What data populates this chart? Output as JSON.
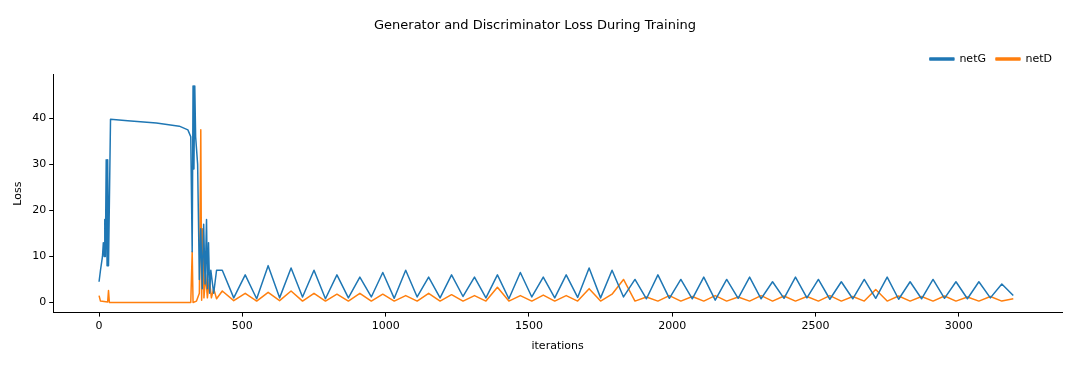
{
  "chart_data": {
    "type": "line",
    "title": "Generator and Discriminator Loss During Training",
    "xlabel": "iterations",
    "ylabel": "Loss",
    "xlim": [
      -160,
      3360
    ],
    "ylim": [
      -2.2,
      49.5
    ],
    "xticks": [
      0,
      500,
      1000,
      1500,
      2000,
      2500,
      3000
    ],
    "yticks": [
      0,
      10,
      20,
      30,
      40
    ],
    "grid": false,
    "legend": "top right",
    "marker": "none",
    "line_style": "solid",
    "series": [
      {
        "name": "netG",
        "color": "#1f77b4",
        "x": [
          0,
          5,
          12,
          15,
          18,
          20,
          22,
          25,
          28,
          30,
          33,
          40,
          100,
          200,
          280,
          310,
          320,
          325,
          328,
          331,
          334,
          337,
          344,
          350,
          355,
          360,
          365,
          370,
          375,
          378,
          382,
          386,
          390,
          400,
          410,
          430,
          470,
          510,
          550,
          590,
          630,
          670,
          710,
          750,
          790,
          830,
          870,
          910,
          950,
          990,
          1030,
          1070,
          1110,
          1150,
          1190,
          1230,
          1270,
          1310,
          1350,
          1390,
          1430,
          1470,
          1510,
          1550,
          1590,
          1630,
          1670,
          1710,
          1750,
          1790,
          1830,
          1870,
          1910,
          1950,
          1990,
          2030,
          2070,
          2110,
          2150,
          2190,
          2230,
          2270,
          2310,
          2350,
          2390,
          2430,
          2470,
          2510,
          2550,
          2590,
          2630,
          2670,
          2710,
          2750,
          2790,
          2830,
          2870,
          2910,
          2950,
          2990,
          3030,
          3070,
          3110,
          3150,
          3190
        ],
        "values": [
          4.5,
          7,
          10,
          13,
          10,
          18,
          10,
          31,
          8,
          31,
          8,
          39.8,
          39.5,
          39,
          38.3,
          37.5,
          36,
          11,
          47,
          29,
          47,
          36,
          30,
          5,
          16,
          3,
          17,
          4,
          18,
          3,
          13,
          2,
          7,
          2,
          7,
          7,
          1,
          6,
          0.8,
          8,
          1,
          7.5,
          1.2,
          7,
          0.8,
          6,
          1,
          5.5,
          1.2,
          6.5,
          0.9,
          7,
          1.2,
          5.5,
          1,
          6,
          1.3,
          5.5,
          1,
          6,
          0.8,
          6.5,
          1.2,
          5.5,
          1,
          6,
          1.1,
          7.5,
          1,
          7,
          1.2,
          5,
          0.8,
          6,
          0.9,
          5,
          0.8,
          5.5,
          0.5,
          5,
          0.9,
          5.5,
          0.8,
          4.5,
          0.9,
          5.5,
          1,
          5,
          0.7,
          4.5,
          0.8,
          5,
          0.9,
          5.5,
          0.7,
          4.5,
          0.8,
          5,
          0.9,
          4.5,
          0.8,
          4.5,
          1,
          4,
          1.5
        ]
      },
      {
        "name": "netD",
        "color": "#ff7f0e",
        "x": [
          0,
          5,
          30,
          33,
          36,
          320,
          325,
          328,
          340,
          350,
          355,
          358,
          362,
          366,
          372,
          378,
          385,
          392,
          400,
          410,
          430,
          470,
          510,
          550,
          590,
          630,
          670,
          710,
          750,
          790,
          830,
          870,
          910,
          950,
          990,
          1030,
          1070,
          1110,
          1150,
          1190,
          1230,
          1270,
          1310,
          1350,
          1390,
          1430,
          1470,
          1510,
          1550,
          1590,
          1630,
          1670,
          1710,
          1750,
          1790,
          1830,
          1870,
          1910,
          1950,
          1990,
          2030,
          2070,
          2110,
          2150,
          2190,
          2230,
          2270,
          2310,
          2350,
          2390,
          2430,
          2470,
          2510,
          2550,
          2590,
          2630,
          2670,
          2710,
          2750,
          2790,
          2830,
          2870,
          2910,
          2950,
          2990,
          3030,
          3070,
          3110,
          3150,
          3190
        ],
        "values": [
          1.5,
          0.3,
          0.1,
          2.6,
          0,
          0,
          11,
          0,
          0.3,
          2,
          37.5,
          0.5,
          16,
          1,
          6,
          1,
          5,
          1,
          3,
          0.8,
          2.5,
          0.4,
          2,
          0.3,
          2.2,
          0.4,
          2.5,
          0.3,
          2,
          0.3,
          1.8,
          0.3,
          2,
          0.3,
          1.8,
          0.3,
          1.5,
          0.3,
          2,
          0.3,
          1.7,
          0.3,
          1.5,
          0.3,
          3.3,
          0.3,
          1.5,
          0.3,
          1.6,
          0.3,
          1.5,
          0.3,
          3,
          0.3,
          1.8,
          5,
          0.3,
          1.2,
          0.3,
          1.5,
          0.3,
          1.3,
          0.3,
          1.5,
          0.3,
          1.2,
          0.3,
          1.5,
          0.3,
          1.4,
          0.3,
          1.3,
          0.3,
          1.5,
          0.3,
          1.3,
          0.3,
          2.8,
          0.3,
          1.4,
          0.3,
          1.3,
          0.3,
          1.4,
          0.3,
          1.2,
          0.3,
          1.3,
          0.3,
          0.8
        ]
      }
    ]
  }
}
